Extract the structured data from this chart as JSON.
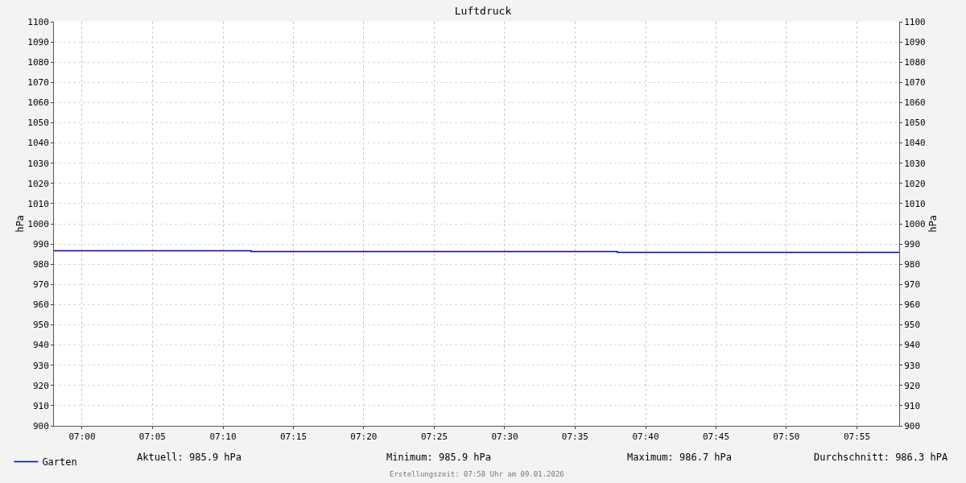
{
  "chart_data": {
    "type": "step",
    "title": "Luftdruck",
    "ylabel": "hPa",
    "y2label": "hPa",
    "x": [
      6.9667,
      7.2,
      7.6333,
      7.9667
    ],
    "series": [
      {
        "name": "Garten",
        "color": "#0000cc",
        "values": [
          986.7,
          986.3,
          985.9,
          985.9
        ]
      }
    ],
    "xlim": [
      6.9667,
      7.9667
    ],
    "xticks": [
      {
        "value": 7,
        "label": "07:00"
      },
      {
        "value": 7.0833,
        "label": "07:05"
      },
      {
        "value": 7.1667,
        "label": "07:10"
      },
      {
        "value": 7.25,
        "label": "07:15"
      },
      {
        "value": 7.3333,
        "label": "07:20"
      },
      {
        "value": 7.4167,
        "label": "07:25"
      },
      {
        "value": 7.5,
        "label": "07:30"
      },
      {
        "value": 7.5833,
        "label": "07:35"
      },
      {
        "value": 7.6667,
        "label": "07:40"
      },
      {
        "value": 7.75,
        "label": "07:45"
      },
      {
        "value": 7.8333,
        "label": "07:50"
      },
      {
        "value": 7.9167,
        "label": "07:55"
      }
    ],
    "ylim": [
      900,
      1100
    ],
    "yticks": [
      900,
      910,
      920,
      930,
      940,
      950,
      960,
      970,
      980,
      990,
      1000,
      1010,
      1020,
      1030,
      1040,
      1050,
      1060,
      1070,
      1080,
      1090,
      1100
    ],
    "y2lim": [
      900,
      1100
    ],
    "y2ticks": [
      900,
      910,
      920,
      930,
      940,
      950,
      960,
      970,
      980,
      990,
      1000,
      1010,
      1020,
      1030,
      1040,
      1050,
      1060,
      1070,
      1080,
      1090,
      1100
    ],
    "annotations": [
      "Aktuell: 985.9 hPa",
      "Minimum: 985.9 hPa",
      "Maximum: 986.7 hPa",
      "Durchschnitt: 986.3 hPA",
      "Erstellungszeit: 07:58 Uhr am 09.01.2026"
    ],
    "grid": true,
    "legend": "bottom left",
    "line_style": "solid",
    "marker": "none"
  }
}
